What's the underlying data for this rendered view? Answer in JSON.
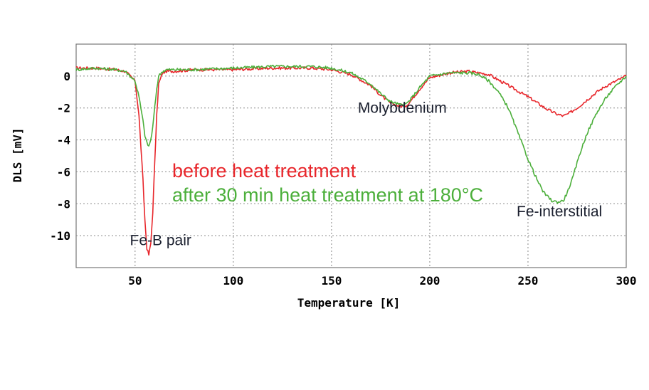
{
  "chart_data": {
    "type": "line",
    "title": "",
    "xlabel": "Temperature [K]",
    "ylabel": "DLS [mV]",
    "xlim": [
      20,
      300
    ],
    "ylim": [
      -12,
      2
    ],
    "x_ticks": [
      50,
      100,
      150,
      200,
      250,
      300
    ],
    "y_ticks": [
      0,
      -2,
      -4,
      -6,
      -8,
      -10
    ],
    "x_tick_labels": [
      "50",
      "100",
      "150",
      "200",
      "250",
      "300"
    ],
    "y_tick_labels": [
      "0",
      "-2",
      "-4",
      "-6",
      "-8",
      "-10"
    ],
    "grid": "dotted",
    "legend": [
      {
        "label": "before heat treatment",
        "color": "#e8262b"
      },
      {
        "label": "after 30 min heat treatment at 180°C",
        "color": "#4caf3b"
      }
    ],
    "annotations": [
      {
        "text": "Molybdenium",
        "x": 186,
        "y": -2.3
      },
      {
        "text": "Fe-interstitial",
        "x": 266,
        "y": -8.8
      },
      {
        "text": "Fe-B pair",
        "x": 63,
        "y": -10.6
      }
    ],
    "series": [
      {
        "color": "#e8262b",
        "x": [
          20,
          30,
          40,
          45,
          50,
          52,
          54,
          55,
          56,
          57,
          58,
          59,
          60,
          61,
          62,
          64,
          66,
          70,
          80,
          100,
          120,
          140,
          150,
          160,
          170,
          175,
          180,
          185,
          188,
          190,
          195,
          200,
          210,
          220,
          225,
          230,
          240,
          250,
          255,
          260,
          265,
          268,
          270,
          275,
          280,
          285,
          290,
          295,
          300
        ],
        "y": [
          0.5,
          0.5,
          0.4,
          0.3,
          -0.3,
          -2.5,
          -6.5,
          -9,
          -10.8,
          -11.2,
          -10.5,
          -8.5,
          -5.5,
          -2.5,
          -0.5,
          0.2,
          0.3,
          0.3,
          0.4,
          0.4,
          0.5,
          0.5,
          0.4,
          0.1,
          -0.6,
          -1.2,
          -1.7,
          -1.9,
          -1.85,
          -1.6,
          -0.8,
          -0.1,
          0.2,
          0.3,
          0.2,
          0.1,
          -0.6,
          -1.3,
          -1.7,
          -2.1,
          -2.4,
          -2.5,
          -2.4,
          -2.0,
          -1.5,
          -1.0,
          -0.6,
          -0.3,
          0.0
        ]
      },
      {
        "color": "#4caf3b",
        "x": [
          20,
          30,
          40,
          45,
          50,
          52,
          54,
          55,
          56,
          57,
          58,
          59,
          60,
          61,
          62,
          64,
          66,
          70,
          80,
          100,
          120,
          140,
          150,
          160,
          170,
          175,
          180,
          185,
          188,
          190,
          195,
          200,
          210,
          220,
          225,
          230,
          235,
          240,
          245,
          250,
          255,
          258,
          262,
          265,
          268,
          270,
          273,
          276,
          280,
          285,
          290,
          295,
          300
        ],
        "y": [
          0.4,
          0.5,
          0.4,
          0.3,
          -0.3,
          -1.3,
          -2.8,
          -3.7,
          -4.2,
          -4.4,
          -4.0,
          -3.2,
          -2.0,
          -0.8,
          0.0,
          0.3,
          0.4,
          0.4,
          0.4,
          0.5,
          0.6,
          0.6,
          0.5,
          0.2,
          -0.5,
          -1.1,
          -1.6,
          -1.8,
          -1.75,
          -1.5,
          -0.7,
          0.0,
          0.2,
          0.2,
          0.1,
          -0.3,
          -1.0,
          -2.0,
          -3.6,
          -5.2,
          -6.6,
          -7.3,
          -7.8,
          -7.9,
          -7.8,
          -7.3,
          -6.3,
          -5.0,
          -3.6,
          -2.3,
          -1.3,
          -0.6,
          0.0
        ]
      }
    ]
  }
}
